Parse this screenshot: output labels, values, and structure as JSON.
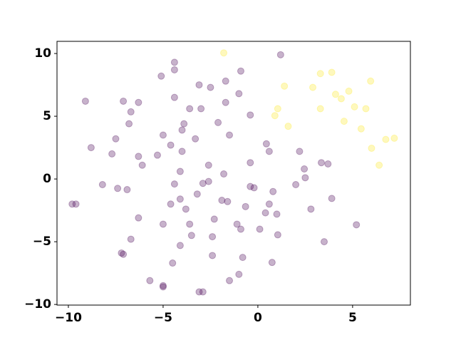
{
  "chart_data": {
    "type": "scatter",
    "xlim": [
      -10.6,
      8.05
    ],
    "ylim": [
      -10.05,
      10.97
    ],
    "xticks": [
      {
        "value": -10,
        "label": "−10"
      },
      {
        "value": -5,
        "label": "−5"
      },
      0,
      5
    ],
    "yticks": [
      {
        "value": -10,
        "label": "−10"
      },
      {
        "value": -5,
        "label": "−5"
      },
      0,
      5,
      10
    ],
    "alpha": 0.3,
    "series": [
      {
        "color": "#440154",
        "x": [
          -9.1,
          -8.8,
          -9.8,
          -9.6,
          -8.2,
          -7.4,
          -6.9,
          -7.7,
          -7.5,
          -7.1,
          -6.7,
          -6.8,
          -6.3,
          -6.3,
          -6.1,
          -6.3,
          -6.7,
          -7.2,
          -7.1,
          -5.7,
          -5.0,
          -5.0,
          -4.5,
          -5.0,
          -5.3,
          -5.0,
          -4.6,
          -5.1,
          -4.4,
          -4.4,
          -4.4,
          -3.9,
          -4.0,
          -4.0,
          -4.1,
          -4.4,
          -4.6,
          -4.1,
          -3.8,
          -4.1,
          -3.6,
          -3.5,
          -3.6,
          -3.1,
          -3.0,
          -3.3,
          -3.2,
          -2.9,
          -2.6,
          -2.6,
          -2.5,
          -3.1,
          -2.9,
          -2.4,
          -2.4,
          -2.3,
          -2.1,
          -1.7,
          -1.7,
          -1.5,
          -1.8,
          -1.9,
          -1.6,
          -1.5,
          -1.0,
          -0.9,
          -1.1,
          -0.9,
          -1.0,
          -0.8,
          -0.65,
          -0.4,
          -0.4,
          -0.4,
          -0.2,
          0.1,
          0.4,
          0.45,
          0.6,
          0.6,
          0.8,
          0.75,
          1.0,
          1.05,
          1.2,
          2.2,
          2.0,
          2.45,
          2.5,
          2.8,
          3.35,
          3.7,
          3.5,
          3.9,
          5.2
        ],
        "values": [
          6.2,
          2.5,
          -2.0,
          -2.0,
          -0.45,
          -0.75,
          -0.85,
          2.0,
          3.2,
          6.2,
          5.35,
          4.4,
          6.1,
          1.8,
          1.1,
          -3.1,
          -4.8,
          -5.9,
          -6.0,
          -8.1,
          -8.5,
          -8.6,
          -6.7,
          -3.6,
          1.9,
          3.5,
          2.7,
          8.2,
          9.3,
          8.7,
          6.5,
          4.4,
          3.9,
          2.2,
          0.6,
          -0.4,
          -2.0,
          -1.6,
          -2.4,
          -5.3,
          -3.6,
          -4.5,
          5.6,
          7.5,
          5.6,
          3.2,
          -1.2,
          -0.35,
          -0.2,
          1.1,
          7.3,
          -9.0,
          -9.0,
          -4.6,
          -6.1,
          -3.2,
          4.5,
          7.8,
          6.1,
          3.5,
          0.4,
          -1.7,
          -1.8,
          -8.1,
          6.8,
          8.6,
          -3.6,
          -4.0,
          -7.6,
          -6.25,
          -2.2,
          5.1,
          1.3,
          -0.6,
          -0.7,
          -4.0,
          -2.7,
          2.8,
          2.2,
          -2.0,
          -1.0,
          -6.65,
          -2.8,
          -4.45,
          9.9,
          2.2,
          -0.45,
          0.8,
          0.1,
          -2.4,
          1.3,
          1.2,
          -5.0,
          -1.55,
          -3.65
        ]
      },
      {
        "color": "#fde725",
        "x": [
          -1.8,
          1.4,
          0.9,
          1.05,
          1.6,
          2.9,
          3.3,
          3.9,
          3.3,
          4.1,
          4.4,
          4.8,
          4.55,
          5.1,
          5.45,
          5.7,
          5.95,
          6.0,
          6.4,
          6.75,
          7.2
        ],
        "values": [
          10.05,
          7.4,
          5.05,
          5.6,
          4.2,
          7.3,
          8.4,
          8.5,
          5.6,
          6.75,
          6.4,
          7.0,
          4.6,
          5.75,
          4.0,
          5.6,
          7.8,
          2.45,
          1.1,
          3.15,
          3.25
        ]
      }
    ]
  }
}
